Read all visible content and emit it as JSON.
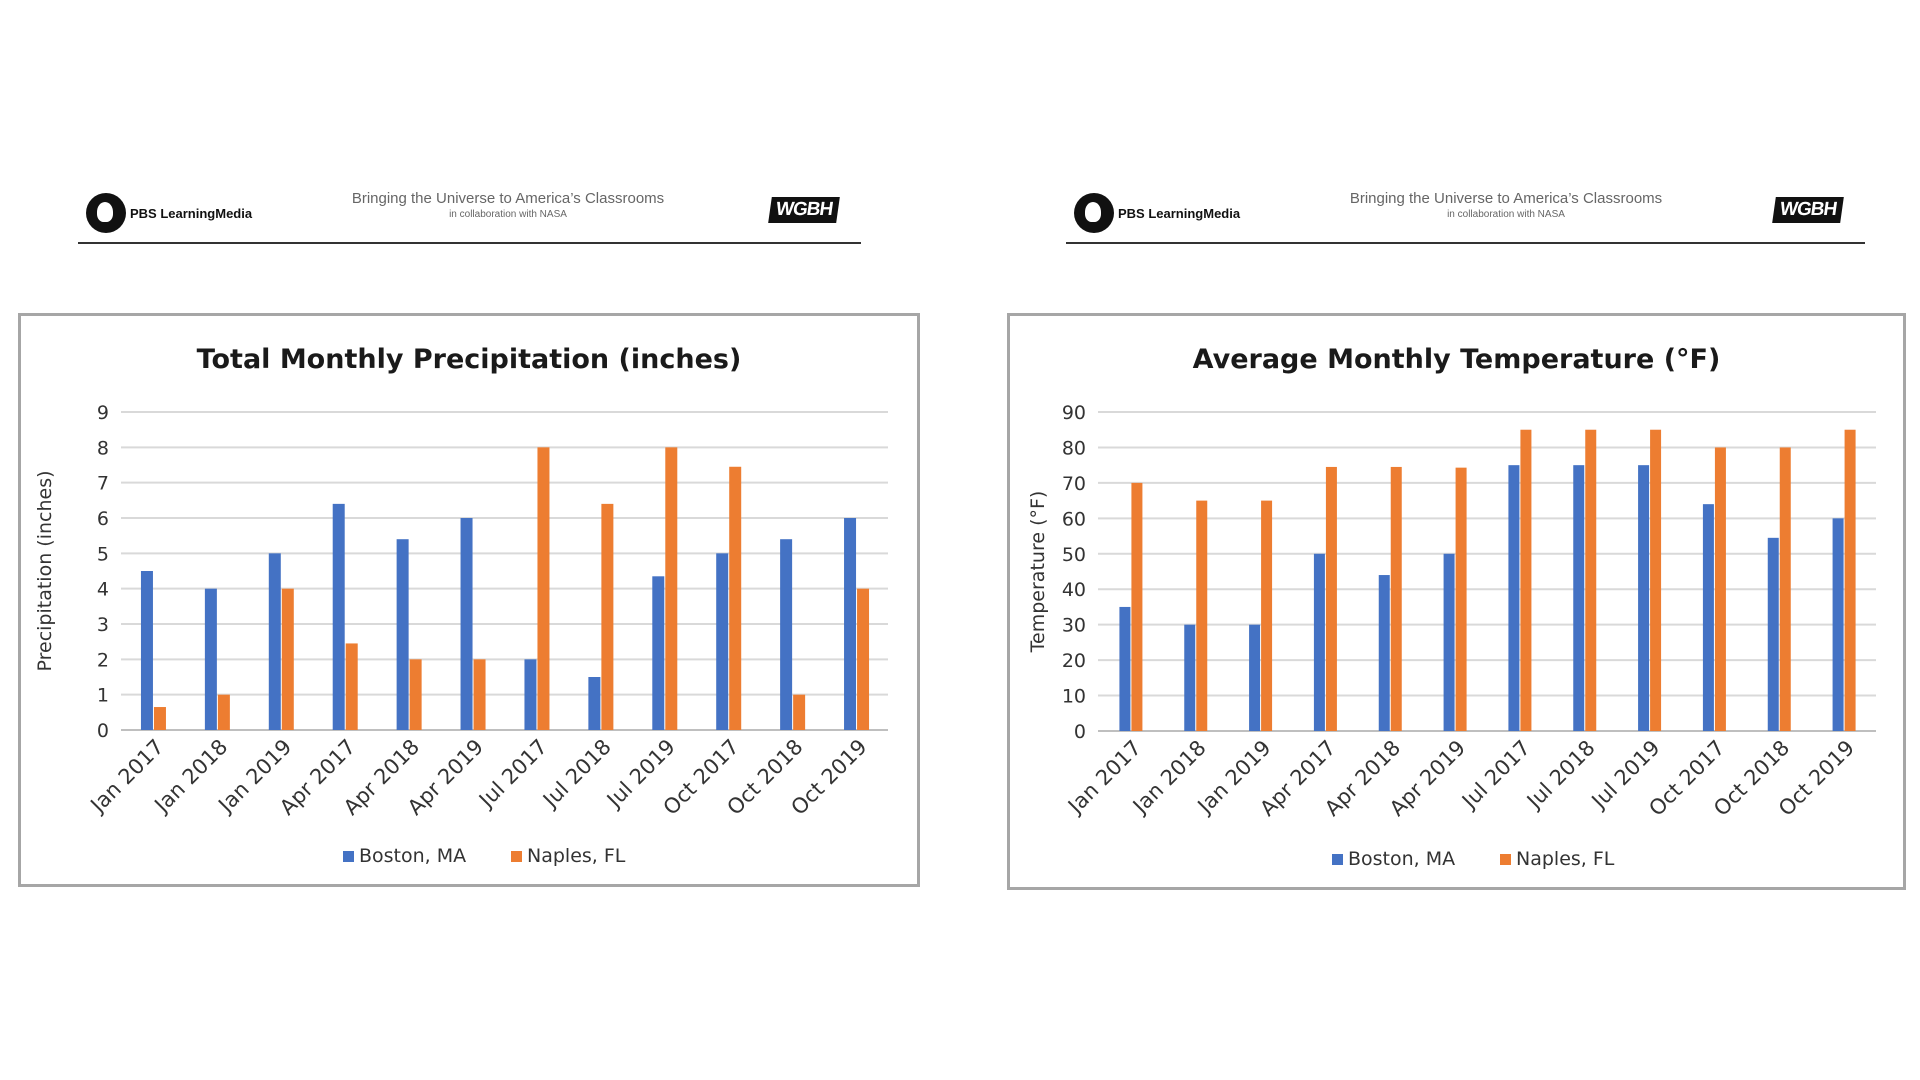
{
  "header": {
    "brand": "PBS LearningMedia",
    "tagline": "Bringing the Universe to America’s Classrooms",
    "subtagline": "in collaboration with NASA",
    "partner_logo": "WGBH"
  },
  "colors": {
    "boston": "#4472c4",
    "naples": "#ed7d31",
    "grid": "#d9d9d9",
    "frame": "#a6a6a6"
  },
  "chart_data": [
    {
      "type": "bar",
      "title": "Total Monthly Precipitation (inches)",
      "xlabel": "",
      "ylabel": "Precipitation (inches)",
      "ylim": [
        0,
        9
      ],
      "yticks": [
        0,
        1,
        2,
        3,
        4,
        5,
        6,
        7,
        8,
        9
      ],
      "grid": true,
      "legend": "bottom",
      "categories": [
        "Jan 2017",
        "Jan 2018",
        "Jan 2019",
        "Apr 2017",
        "Apr 2018",
        "Apr 2019",
        "Jul 2017",
        "Jul 2018",
        "Jul 2019",
        "Oct 2017",
        "Oct 2018",
        "Oct 2019"
      ],
      "series": [
        {
          "name": "Boston, MA",
          "color": "#4472c4",
          "values": [
            4.5,
            4,
            5,
            6.4,
            5.4,
            6,
            2,
            1.5,
            4.35,
            5,
            5.4,
            6
          ]
        },
        {
          "name": "Naples, FL",
          "color": "#ed7d31",
          "values": [
            0.65,
            1,
            4,
            2.45,
            2,
            2,
            8,
            6.4,
            8,
            7.45,
            1,
            4
          ]
        }
      ]
    },
    {
      "type": "bar",
      "title": "Average Monthly Temperature (°F)",
      "xlabel": "",
      "ylabel": "Temperature (°F)",
      "ylim": [
        0,
        90
      ],
      "yticks": [
        0,
        10,
        20,
        30,
        40,
        50,
        60,
        70,
        80,
        90
      ],
      "grid": true,
      "legend": "bottom",
      "categories": [
        "Jan 2017",
        "Jan 2018",
        "Jan 2019",
        "Apr 2017",
        "Apr 2018",
        "Apr 2019",
        "Jul 2017",
        "Jul 2018",
        "Jul 2019",
        "Oct 2017",
        "Oct 2018",
        "Oct 2019"
      ],
      "series": [
        {
          "name": "Boston, MA",
          "color": "#4472c4",
          "values": [
            35,
            30,
            30,
            50,
            44,
            50,
            75,
            75,
            75,
            64,
            54.5,
            60
          ]
        },
        {
          "name": "Naples, FL",
          "color": "#ed7d31",
          "values": [
            70,
            65,
            65,
            74.5,
            74.5,
            74.3,
            85,
            85,
            85,
            80,
            80,
            85
          ]
        }
      ]
    }
  ]
}
